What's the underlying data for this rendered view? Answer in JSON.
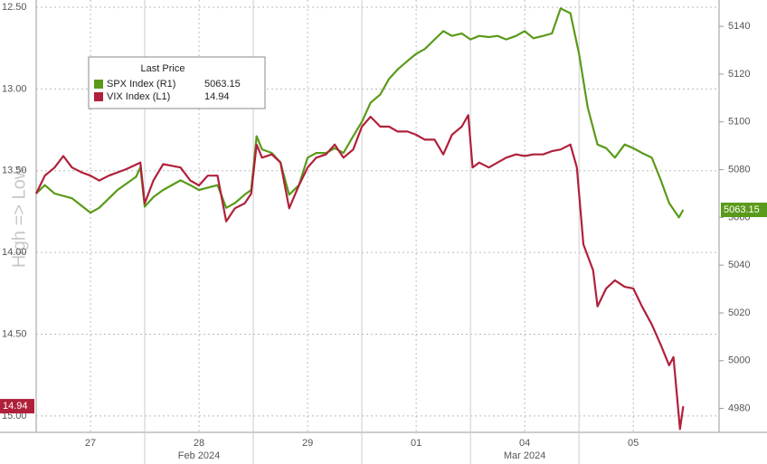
{
  "chart_data": {
    "type": "line",
    "legend_title": "Last Price",
    "annotation": "High => Low",
    "xlim": [
      0,
      6.29
    ],
    "xticks": [
      {
        "value": 0.5,
        "label": "27"
      },
      {
        "value": 1.5,
        "label": "28"
      },
      {
        "value": 2.5,
        "label": "29"
      },
      {
        "value": 3.5,
        "label": "01"
      },
      {
        "value": 4.5,
        "label": "04"
      },
      {
        "value": 5.5,
        "label": "05"
      }
    ],
    "month_ticks": [
      {
        "value": 1.5,
        "label": "Feb 2024"
      },
      {
        "value": 4.5,
        "label": "Mar 2024"
      }
    ],
    "ylim": [
      12.5,
      15.1
    ],
    "y_inverted": true,
    "yticks": [
      {
        "value": 12.5,
        "label": "12.50"
      },
      {
        "value": 13,
        "label": "13.00"
      },
      {
        "value": 13.5,
        "label": "13.50"
      },
      {
        "value": 14,
        "label": "14.00"
      },
      {
        "value": 14.5,
        "label": "14.50"
      },
      {
        "value": 15,
        "label": "15.00"
      }
    ],
    "y2lim": [
      4970,
      5148
    ],
    "y2ticks": [
      4980,
      5000,
      5020,
      5040,
      5060,
      5080,
      5100,
      5120,
      5140
    ],
    "grid": true,
    "series": [
      {
        "name": "SPX Index  (R1)",
        "color": "#5a9a1a",
        "axis": "y2",
        "x": [
          0.0,
          0.08,
          0.17,
          0.33,
          0.5,
          0.58,
          0.75,
          0.92,
          0.96,
          1.0,
          1.08,
          1.17,
          1.33,
          1.42,
          1.5,
          1.67,
          1.75,
          1.83,
          1.92,
          1.98,
          2.03,
          2.08,
          2.17,
          2.25,
          2.33,
          2.42,
          2.5,
          2.58,
          2.67,
          2.75,
          2.83,
          2.92,
          3.0,
          3.08,
          3.17,
          3.25,
          3.33,
          3.42,
          3.5,
          3.58,
          3.67,
          3.75,
          3.83,
          3.92,
          4.0,
          4.08,
          4.17,
          4.25,
          4.33,
          4.42,
          4.5,
          4.58,
          4.67,
          4.75,
          4.83,
          4.92,
          5.0,
          5.08,
          5.17,
          5.25,
          5.33,
          5.42,
          5.5,
          5.58,
          5.67,
          5.75,
          5.83,
          5.92,
          5.96
        ],
        "values": [
          5070,
          5073.5,
          5070,
          5068,
          5062,
          5064,
          5071.5,
          5077,
          5081,
          5064.5,
          5068.5,
          5071.5,
          5075.5,
          5073.5,
          5071.5,
          5073.5,
          5064,
          5066,
          5069.5,
          5071.5,
          5094,
          5088.5,
          5087,
          5083,
          5069.5,
          5073.5,
          5085,
          5087,
          5087,
          5089,
          5087,
          5094,
          5100,
          5108,
          5111.5,
          5118,
          5122,
          5125.5,
          5128.5,
          5130.5,
          5134.5,
          5138,
          5136,
          5137,
          5134.5,
          5136,
          5135.5,
          5136,
          5134.5,
          5136,
          5138,
          5135,
          5136,
          5137,
          5147.5,
          5145.5,
          5128.5,
          5106,
          5090.5,
          5089,
          5085,
          5090.5,
          5089,
          5087,
          5085,
          5076,
          5066,
          5060,
          5063.15
        ]
      },
      {
        "name": "VIX Index  (L1)",
        "color": "#b0203a",
        "axis": "y",
        "x": [
          0.0,
          0.08,
          0.17,
          0.25,
          0.33,
          0.42,
          0.5,
          0.58,
          0.67,
          0.75,
          0.83,
          0.96,
          1.0,
          1.08,
          1.17,
          1.25,
          1.33,
          1.42,
          1.5,
          1.58,
          1.67,
          1.75,
          1.83,
          1.92,
          1.98,
          2.03,
          2.08,
          2.17,
          2.25,
          2.33,
          2.42,
          2.5,
          2.58,
          2.67,
          2.75,
          2.83,
          2.92,
          3.0,
          3.08,
          3.17,
          3.25,
          3.33,
          3.42,
          3.5,
          3.58,
          3.67,
          3.75,
          3.83,
          3.92,
          3.98,
          4.02,
          4.08,
          4.17,
          4.25,
          4.33,
          4.42,
          4.5,
          4.58,
          4.67,
          4.75,
          4.83,
          4.92,
          4.98,
          5.04,
          5.13,
          5.17,
          5.25,
          5.33,
          5.42,
          5.5,
          5.58,
          5.67,
          5.75,
          5.83,
          5.87,
          5.93,
          5.96
        ],
        "values": [
          13.64,
          13.53,
          13.48,
          13.41,
          13.48,
          13.51,
          13.53,
          13.56,
          13.53,
          13.51,
          13.49,
          13.45,
          13.7,
          13.56,
          13.46,
          13.47,
          13.48,
          13.56,
          13.59,
          13.53,
          13.53,
          13.81,
          13.73,
          13.7,
          13.64,
          13.34,
          13.42,
          13.4,
          13.45,
          13.73,
          13.59,
          13.48,
          13.42,
          13.4,
          13.34,
          13.42,
          13.37,
          13.23,
          13.17,
          13.23,
          13.23,
          13.26,
          13.26,
          13.28,
          13.31,
          13.31,
          13.4,
          13.28,
          13.23,
          13.16,
          13.48,
          13.45,
          13.48,
          13.45,
          13.42,
          13.4,
          13.41,
          13.4,
          13.4,
          13.38,
          13.37,
          13.34,
          13.48,
          13.95,
          14.11,
          14.33,
          14.22,
          14.17,
          14.21,
          14.22,
          14.33,
          14.44,
          14.56,
          14.69,
          14.64,
          15.08,
          14.94
        ]
      }
    ]
  }
}
